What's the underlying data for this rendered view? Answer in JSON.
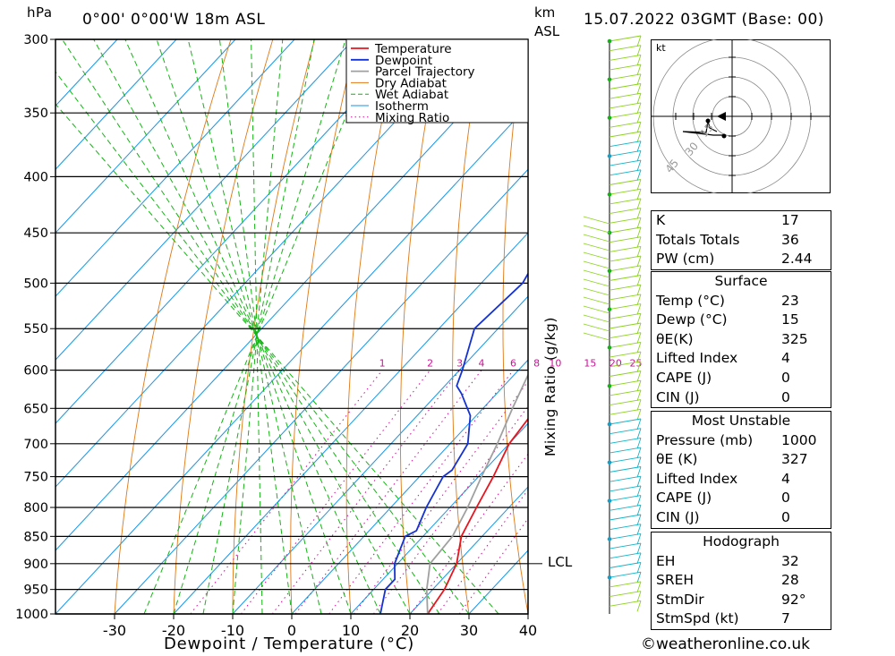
{
  "header": {
    "location": "0°00' 0°00'W 18m ASL",
    "datetime": "15.07.2022 03GMT (Base: 00)",
    "pressure_unit": "hPa",
    "height_unit_1": "km",
    "height_unit_2": "ASL"
  },
  "chart_data": {
    "type": "line",
    "title": "",
    "xlabel": "Dewpoint / Temperature (°C)",
    "ylabel": "hPa",
    "y2label": "Mixing Ratio (g/kg)",
    "x_range": [
      -40,
      40
    ],
    "y_range": [
      1000,
      300
    ],
    "y_scale": "log",
    "x_ticks": [
      "-30",
      "-20",
      "-10",
      "0",
      "10",
      "20",
      "30",
      "40"
    ],
    "y_ticks": [
      "300",
      "350",
      "400",
      "450",
      "500",
      "550",
      "600",
      "650",
      "700",
      "750",
      "800",
      "850",
      "900",
      "950",
      "1000"
    ],
    "mixing_ratio_labels": [
      "1",
      "2",
      "3",
      "4",
      "6",
      "8",
      "10",
      "15",
      "20",
      "25"
    ],
    "lcl_label": "LCL",
    "lcl_pressure": 900,
    "legend": [
      "Temperature",
      "Dewpoint",
      "Parcel Trajectory",
      "Dry Adiabat",
      "Wet Adiabat",
      "Isotherm",
      "Mixing Ratio"
    ],
    "legend_placement": "top-right",
    "colors": {
      "temperature": "#e8141e",
      "dewpoint": "#1432d2",
      "parcel": "#a0a0a0",
      "dry_adiabat": "#e07814",
      "wet_adiabat": "#14b414",
      "isotherm": "#1496e6",
      "mixing_ratio": "#c81496"
    },
    "series": [
      {
        "name": "Temperature",
        "points": [
          [
            1000,
            23
          ],
          [
            950,
            22
          ],
          [
            900,
            20
          ],
          [
            850,
            16.5
          ],
          [
            800,
            14.5
          ],
          [
            750,
            12.5
          ],
          [
            700,
            10
          ],
          [
            650,
            9
          ],
          [
            600,
            7.5
          ],
          [
            550,
            5
          ],
          [
            500,
            0.5
          ],
          [
            450,
            -5
          ],
          [
            400,
            -10.5
          ],
          [
            350,
            -15.5
          ],
          [
            300,
            -20
          ]
        ]
      },
      {
        "name": "Dewpoint",
        "points": [
          [
            1000,
            15
          ],
          [
            950,
            12
          ],
          [
            930,
            12
          ],
          [
            900,
            9.5
          ],
          [
            850,
            7
          ],
          [
            840,
            8
          ],
          [
            800,
            6
          ],
          [
            750,
            4
          ],
          [
            740,
            4.5
          ],
          [
            700,
            3
          ],
          [
            660,
            -1
          ],
          [
            630,
            -6
          ],
          [
            620,
            -8
          ],
          [
            600,
            -9.5
          ],
          [
            550,
            -14
          ],
          [
            500,
            -13
          ],
          [
            450,
            -16
          ],
          [
            400,
            -20.5
          ],
          [
            375,
            -28
          ]
        ]
      },
      {
        "name": "Parcel Trajectory",
        "points": [
          [
            1000,
            23
          ],
          [
            950,
            19
          ],
          [
            900,
            15.5
          ],
          [
            850,
            15
          ],
          [
            800,
            13
          ],
          [
            750,
            10.5
          ],
          [
            700,
            8
          ],
          [
            650,
            5
          ],
          [
            600,
            2
          ],
          [
            550,
            -2
          ],
          [
            500,
            -6
          ],
          [
            450,
            -10
          ],
          [
            400,
            -15
          ],
          [
            350,
            -19.5
          ],
          [
            310,
            -23
          ]
        ]
      }
    ]
  },
  "wind_profile": {
    "label": "kt",
    "hodograph_rings": [
      "15",
      "30",
      "45"
    ]
  },
  "indices": [
    {
      "key": "K",
      "value": "17"
    },
    {
      "key": "Totals Totals",
      "value": "36"
    },
    {
      "key": "PW (cm)",
      "value": "2.44"
    }
  ],
  "surface": {
    "title": "Surface",
    "rows": [
      {
        "key": "Temp (°C)",
        "value": "23"
      },
      {
        "key": "Dewp (°C)",
        "value": "15"
      },
      {
        "key": "θE(K)",
        "value": "325"
      },
      {
        "key": "Lifted Index",
        "value": "4"
      },
      {
        "key": "CAPE (J)",
        "value": "0"
      },
      {
        "key": "CIN (J)",
        "value": "0"
      }
    ]
  },
  "most_unstable": {
    "title": "Most Unstable",
    "rows": [
      {
        "key": "Pressure (mb)",
        "value": "1000"
      },
      {
        "key": "θE (K)",
        "value": "327"
      },
      {
        "key": "Lifted Index",
        "value": "4"
      },
      {
        "key": "CAPE (J)",
        "value": "0"
      },
      {
        "key": "CIN (J)",
        "value": "0"
      }
    ]
  },
  "hodograph": {
    "title": "Hodograph",
    "rows": [
      {
        "key": "EH",
        "value": "32"
      },
      {
        "key": "SREH",
        "value": "28"
      },
      {
        "key": "StmDir",
        "value": "92°"
      },
      {
        "key": "StmSpd (kt)",
        "value": "7"
      }
    ]
  },
  "footer": {
    "copyright": "©weatheronline.co.uk"
  }
}
